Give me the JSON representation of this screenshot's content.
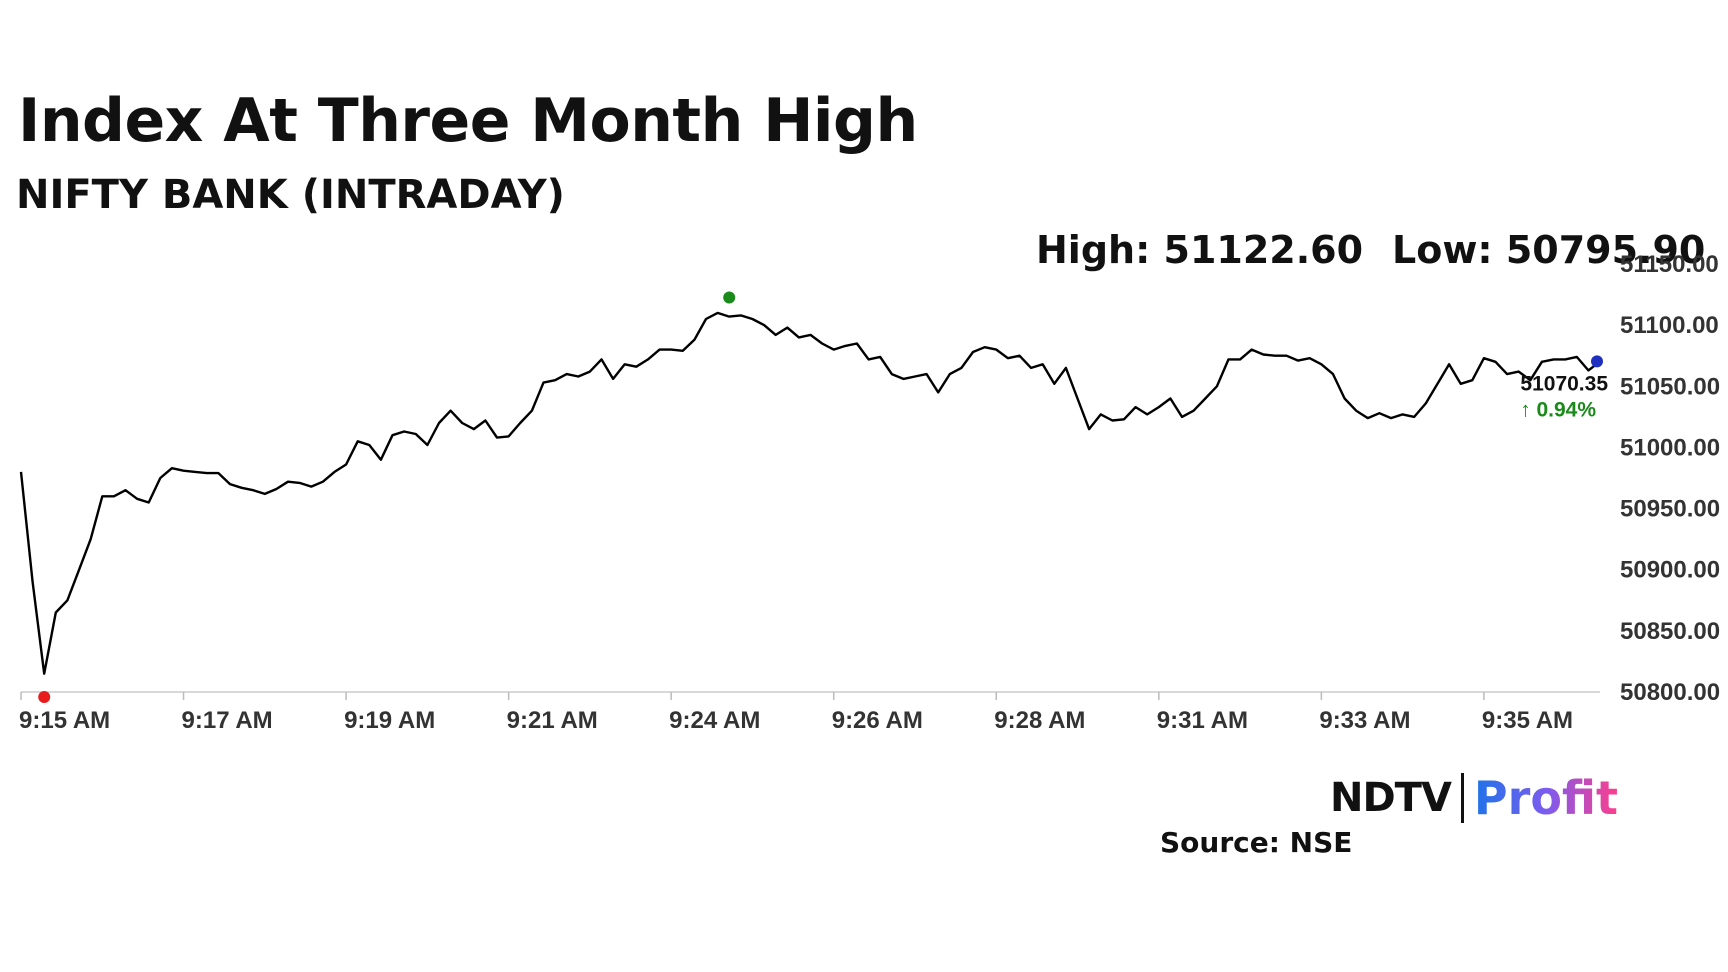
{
  "header": {
    "title": "Index At Three Month High",
    "subtitle": "NIFTY BANK (INTRADAY)",
    "high_text": "High: 51122.60",
    "low_text": "Low: 50795.90"
  },
  "last_point": {
    "value_label": "51070.35",
    "change_label": "↑ 0.94%"
  },
  "footer": {
    "brand_left": "NDTV",
    "brand_right": "Profit",
    "source": "Source: NSE"
  },
  "colors": {
    "line": "#000000",
    "high_marker": "#1a8a1a",
    "low_marker": "#e81c1c",
    "last_marker": "#1f2fbf",
    "change_positive": "#1a8a1a"
  },
  "chart_data": {
    "type": "line",
    "title": "Index At Three Month High",
    "subtitle": "NIFTY BANK (INTRADAY)",
    "xlabel": "",
    "ylabel": "",
    "ylim": [
      50800,
      51150
    ],
    "y_ticks": [
      "51150.00",
      "51100.00",
      "51050.00",
      "51000.00",
      "50950.00",
      "50900.00",
      "50850.00",
      "50800.00"
    ],
    "y_tick_values": [
      51150,
      51100,
      51050,
      51000,
      50950,
      50900,
      50850,
      50800
    ],
    "x_ticks": [
      "9:15 AM",
      "9:17 AM",
      "9:19 AM",
      "9:21 AM",
      "9:24 AM",
      "9:26 AM",
      "9:28 AM",
      "9:31 AM",
      "9:33 AM",
      "9:35 AM"
    ],
    "x_tick_index": [
      0,
      14,
      28,
      42,
      56,
      70,
      84,
      98,
      112,
      126
    ],
    "grid": false,
    "high": 51122.6,
    "low": 50795.9,
    "high_index": 61,
    "low_index": 2,
    "last": 51070.35,
    "change_pct": 0.94,
    "series": [
      {
        "values": [
          50980,
          50890,
          50815,
          50865,
          50875,
          50900,
          50925,
          50960,
          50960,
          50965,
          50958,
          50955,
          50975,
          50983,
          50981,
          50980,
          50979,
          50979,
          50970,
          50967,
          50965,
          50962,
          50966,
          50972,
          50971,
          50968,
          50972,
          50980,
          50986,
          51005,
          51002,
          50990,
          51010,
          51013,
          51011,
          51002,
          51020,
          51030,
          51020,
          51015,
          51022,
          51008,
          51009,
          51020,
          51030,
          51053,
          51055,
          51060,
          51058,
          51062,
          51072,
          51056,
          51068,
          51066,
          51072,
          51080,
          51080,
          51079,
          51088,
          51105,
          51110,
          51107,
          51108,
          51105,
          51100,
          51092,
          51098,
          51090,
          51092,
          51085,
          51080,
          51083,
          51085,
          51072,
          51074,
          51060,
          51056,
          51058,
          51060,
          51045,
          51060,
          51065,
          51078,
          51082,
          51080,
          51073,
          51075,
          51065,
          51068,
          51052,
          51065,
          51040,
          51015,
          51027,
          51022,
          51023,
          51033,
          51027,
          51033,
          51040,
          51025,
          51030,
          51040,
          51050,
          51072,
          51072,
          51080,
          51076,
          51075,
          51075,
          51071,
          51073,
          51068,
          51060,
          51040,
          51030,
          51024,
          51028,
          51024,
          51027,
          51025,
          51036,
          51052,
          51068,
          51052,
          51055,
          51073,
          51070,
          51060,
          51062,
          51055,
          51070,
          51072,
          51072,
          51074,
          51063,
          51070.35
        ]
      }
    ]
  }
}
